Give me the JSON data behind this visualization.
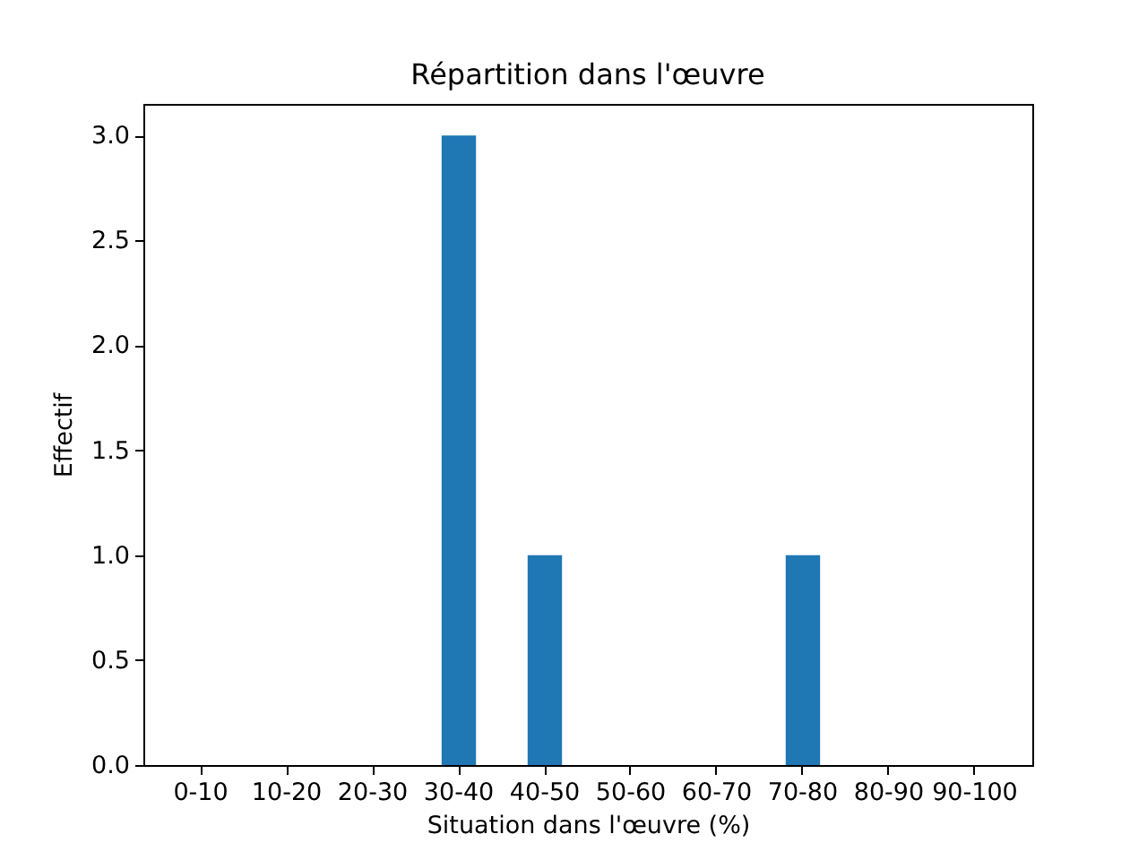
{
  "chart_data": {
    "type": "bar",
    "title": "Répartition dans l'œuvre",
    "xlabel": "Situation dans l'œuvre (%)",
    "ylabel": "Effectif",
    "categories": [
      "0-10",
      "10-20",
      "20-30",
      "30-40",
      "40-50",
      "50-60",
      "60-70",
      "70-80",
      "80-90",
      "90-100"
    ],
    "values": [
      0,
      0,
      0,
      3,
      1,
      0,
      0,
      1,
      0,
      0
    ],
    "color": "#1f77b4",
    "ylim": [
      0,
      3.15
    ],
    "yticks": [
      {
        "value": 0,
        "label": "0.0"
      },
      0.5,
      {
        "value": 1,
        "label": "1.0"
      },
      1.5,
      {
        "value": 2,
        "label": "2.0"
      },
      2.5,
      {
        "value": 3,
        "label": "3.0"
      }
    ]
  }
}
